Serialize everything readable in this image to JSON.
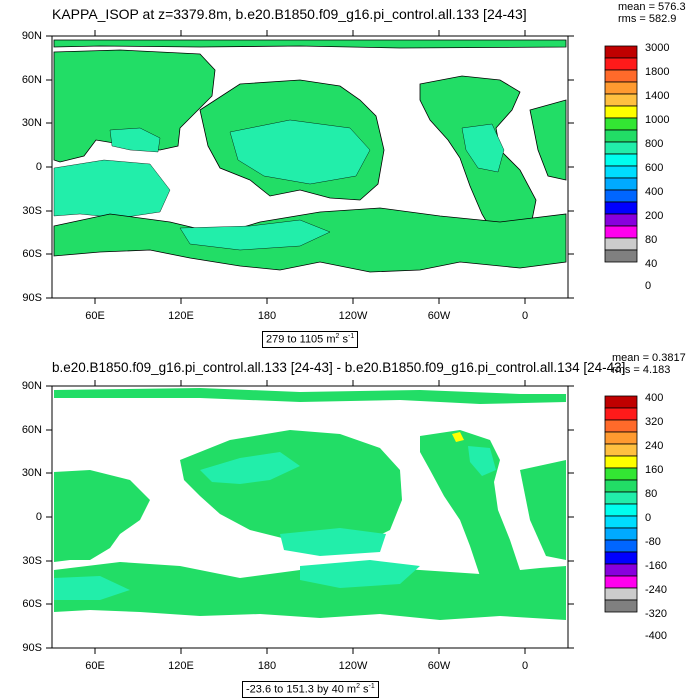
{
  "top": {
    "title": "KAPPA_ISOP at z=3379.8m, b.e20.B1850.f09_g16.pi_control.all.133 [24-43]",
    "mean": "mean = 576.3",
    "rms": "rms = 582.9",
    "range_value": "279 to 1105 m",
    "range_exp": "2",
    "range_unit": " s",
    "range_unit_exp": "-1",
    "colorbar": {
      "labels": [
        "3000",
        "1800",
        "1400",
        "1000",
        "800",
        "600",
        "400",
        "200",
        "80",
        "40",
        "0"
      ],
      "colors": [
        "#c00000",
        "#ff1a1a",
        "#ff6a2a",
        "#ff9a30",
        "#ffc040",
        "#ffff00",
        "#33e633",
        "#22dd66",
        "#22eeaa",
        "#00ffee",
        "#00ddff",
        "#00aaff",
        "#0066ff",
        "#0000ff",
        "#8800dd",
        "#ff00ee",
        "#cccccc",
        "#808080"
      ]
    }
  },
  "bottom": {
    "title": "b.e20.B1850.f09_g16.pi_control.all.133 [24-43] - b.e20.B1850.f09_g16.pi_control.all.134 [24-43]",
    "mean": "mean = 0.3817",
    "rms": "rms = 4.183",
    "range_value": "-23.6 to 151.3 by 40 m",
    "range_exp": "2",
    "range_unit": " s",
    "range_unit_exp": "-1",
    "colorbar": {
      "labels": [
        "400",
        "320",
        "240",
        "160",
        "80",
        "0",
        "-80",
        "-160",
        "-240",
        "-320",
        "-400"
      ],
      "colors": [
        "#c00000",
        "#ff1a1a",
        "#ff6a2a",
        "#ff9a30",
        "#ffc040",
        "#ffff00",
        "#33e633",
        "#22dd66",
        "#22eeaa",
        "#00ffee",
        "#00ddff",
        "#00aaff",
        "#0066ff",
        "#0000ff",
        "#8800dd",
        "#ff00ee",
        "#cccccc",
        "#808080"
      ]
    }
  },
  "axes": {
    "lat_labels": [
      "90N",
      "60N",
      "30N",
      "0",
      "30S",
      "60S",
      "90S"
    ],
    "lon_labels": [
      "60E",
      "120E",
      "180",
      "120W",
      "60W",
      "0"
    ]
  }
}
